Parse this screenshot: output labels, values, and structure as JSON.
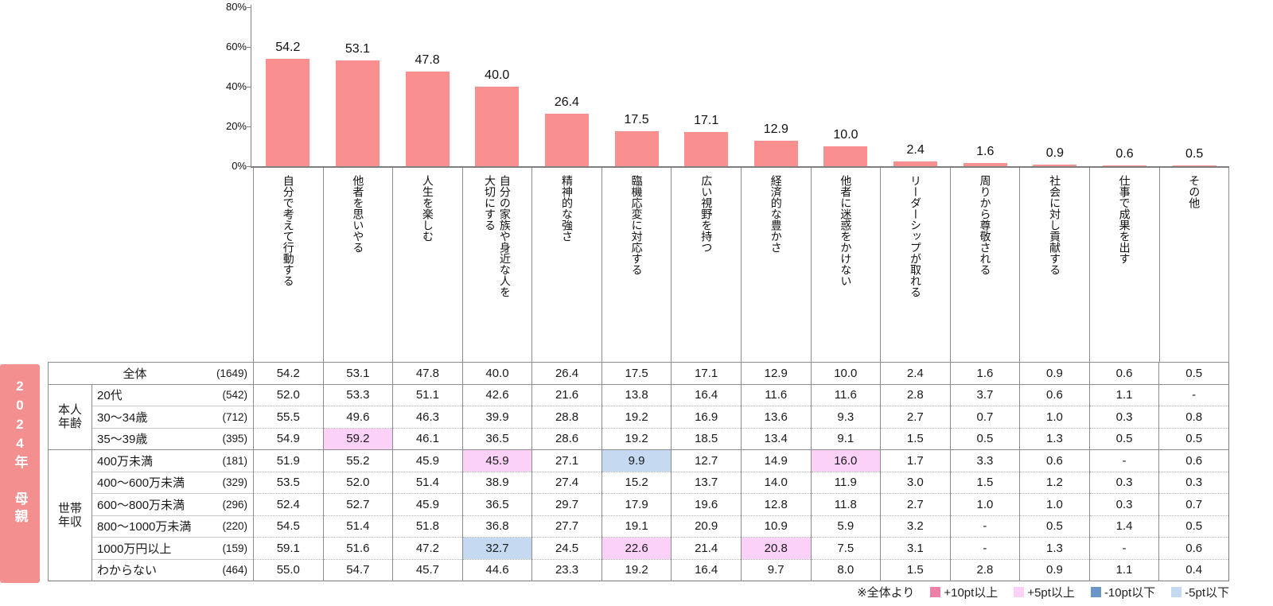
{
  "banner": {
    "text": "2024年 母親",
    "bg": "#F3908F"
  },
  "chart_data": {
    "type": "bar",
    "title": "",
    "xlabel": "",
    "ylabel": "",
    "ylim": [
      0,
      80
    ],
    "grid": false,
    "bar_color": "#FA8F8F",
    "y_ticks": [
      {
        "label": "0%",
        "value": 0
      },
      {
        "label": "20%",
        "value": 20
      },
      {
        "label": "40%",
        "value": 40
      },
      {
        "label": "60%",
        "value": 60
      },
      {
        "label": "80%",
        "value": 80
      }
    ],
    "categories": [
      "自分で考えて行動する",
      "他者を思いやる",
      "人生を楽しむ",
      "自分の家族や身近な人を\n大切にする",
      "精神的な強さ",
      "臨機応変に対応する",
      "広い視野を持つ",
      "経済的な豊かさ",
      "他者に迷惑をかけない",
      "リーダーシップが取れる",
      "周りから尊敬される",
      "社会に対し貢献する",
      "仕事で成果を出す",
      "その他"
    ],
    "values": [
      54.2,
      53.1,
      47.8,
      40.0,
      26.4,
      17.5,
      17.1,
      12.9,
      10.0,
      2.4,
      1.6,
      0.9,
      0.6,
      0.5
    ]
  },
  "table": {
    "rows": [
      {
        "label": "全体",
        "count": "(1649)",
        "full_width": true,
        "sep": "solid",
        "values": [
          "54.2",
          "53.1",
          "47.8",
          "40.0",
          "26.4",
          "17.5",
          "17.1",
          "12.9",
          "10.0",
          "2.4",
          "1.6",
          "0.9",
          "0.6",
          "0.5"
        ],
        "highlights": {}
      },
      {
        "group": "本人\n年齢",
        "group_rows": 3,
        "label": "20代",
        "count": "(542)",
        "sep": "solid",
        "values": [
          "52.0",
          "53.3",
          "51.1",
          "42.6",
          "21.6",
          "13.8",
          "16.4",
          "11.6",
          "11.6",
          "2.8",
          "3.7",
          "0.6",
          "1.1",
          "-"
        ],
        "highlights": {}
      },
      {
        "label": "30～34歳",
        "count": "(712)",
        "sep": "dotted",
        "values": [
          "55.5",
          "49.6",
          "46.3",
          "39.9",
          "28.8",
          "19.2",
          "16.9",
          "13.6",
          "9.3",
          "2.7",
          "0.7",
          "1.0",
          "0.3",
          "0.8"
        ],
        "highlights": {}
      },
      {
        "label": "35～39歳",
        "count": "(395)",
        "sep": "dotted",
        "values": [
          "54.9",
          "59.2",
          "46.1",
          "36.5",
          "28.6",
          "19.2",
          "18.5",
          "13.4",
          "9.1",
          "1.5",
          "0.5",
          "1.3",
          "0.5",
          "0.5"
        ],
        "highlights": {
          "1": "pink"
        }
      },
      {
        "group": "世帯\n年収",
        "group_rows": 6,
        "label": "400万未満",
        "count": "(181)",
        "sep": "solid",
        "values": [
          "51.9",
          "55.2",
          "45.9",
          "45.9",
          "27.1",
          "9.9",
          "12.7",
          "14.9",
          "16.0",
          "1.7",
          "3.3",
          "0.6",
          "-",
          "0.6"
        ],
        "highlights": {
          "3": "pink",
          "5": "blue",
          "8": "pink"
        }
      },
      {
        "label": "400～600万未満",
        "count": "(329)",
        "sep": "dotted",
        "values": [
          "53.5",
          "52.0",
          "51.4",
          "38.9",
          "27.4",
          "15.2",
          "13.7",
          "14.0",
          "11.9",
          "3.0",
          "1.5",
          "1.2",
          "0.3",
          "0.3"
        ],
        "highlights": {}
      },
      {
        "label": "600～800万未満",
        "count": "(296)",
        "sep": "dotted",
        "values": [
          "52.4",
          "52.7",
          "45.9",
          "36.5",
          "29.7",
          "17.9",
          "19.6",
          "12.8",
          "11.8",
          "2.7",
          "1.0",
          "1.0",
          "0.3",
          "0.7"
        ],
        "highlights": {}
      },
      {
        "label": "800～1000万未満",
        "count": "(220)",
        "sep": "dotted",
        "values": [
          "54.5",
          "51.4",
          "51.8",
          "36.8",
          "27.7",
          "19.1",
          "20.9",
          "10.9",
          "5.9",
          "3.2",
          "-",
          "0.5",
          "1.4",
          "0.5"
        ],
        "highlights": {}
      },
      {
        "label": "1000万円以上",
        "count": "(159)",
        "sep": "dotted",
        "values": [
          "59.1",
          "51.6",
          "47.2",
          "32.7",
          "24.5",
          "22.6",
          "21.4",
          "20.8",
          "7.5",
          "3.1",
          "-",
          "1.3",
          "-",
          "0.6"
        ],
        "highlights": {
          "3": "blue",
          "5": "pink",
          "7": "pink"
        }
      },
      {
        "label": "わからない",
        "count": "(464)",
        "sep": "dotted",
        "values": [
          "55.0",
          "54.7",
          "45.7",
          "44.6",
          "23.3",
          "19.2",
          "16.4",
          "9.7",
          "8.0",
          "1.5",
          "2.8",
          "0.9",
          "1.1",
          "0.4"
        ],
        "highlights": {}
      }
    ]
  },
  "highlight_colors": {
    "pink": "#FBD1F7",
    "blue": "#C5D9F0"
  },
  "legend": {
    "prefix": "※全体より",
    "items": [
      {
        "label": "+10pt以上",
        "color": "#EE7FA8"
      },
      {
        "label": "+5pt以上",
        "color": "#FBD1F7"
      },
      {
        "label": "-10pt以下",
        "color": "#6C96C8"
      },
      {
        "label": "-5pt以下",
        "color": "#C5D9F0"
      }
    ]
  }
}
